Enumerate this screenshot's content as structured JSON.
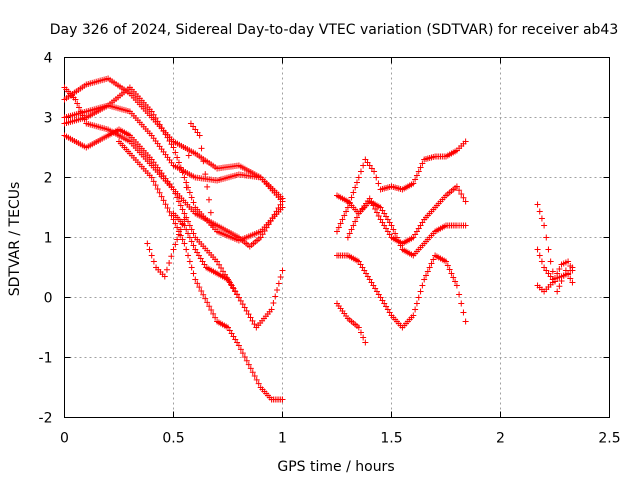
{
  "chart_data": {
    "type": "scatter",
    "title": "Day 326 of 2024, Sidereal Day-to-day VTEC variation (SDTVAR) for receiver ab43",
    "xlabel": "GPS time / hours",
    "ylabel": "SDTVAR / TECUs",
    "xlim": [
      0,
      2.5
    ],
    "ylim": [
      -2,
      4
    ],
    "xticks": [
      0,
      0.5,
      1,
      1.5,
      2,
      2.5
    ],
    "xtick_labels": [
      "0",
      "0.5",
      "1",
      "1.5",
      "2",
      "2.5"
    ],
    "yticks": [
      -2,
      -1,
      0,
      1,
      2,
      3,
      4
    ],
    "ytick_labels": [
      "-2",
      "-1",
      "0",
      "1",
      "2",
      "3",
      "4"
    ],
    "grid": true,
    "marker": "+",
    "color": "#ff0000",
    "series": [
      {
        "name": "s1",
        "x": [
          0,
          0.1,
          0.2,
          0.3,
          0.4,
          0.5,
          0.6,
          0.7,
          0.8,
          0.9,
          1.0
        ],
        "y": [
          3.3,
          3.55,
          3.65,
          3.4,
          3.0,
          2.6,
          2.4,
          2.15,
          2.2,
          2.0,
          1.65
        ]
      },
      {
        "name": "s2",
        "x": [
          0,
          0.1,
          0.2,
          0.3,
          0.4,
          0.5,
          0.6,
          0.7,
          0.8,
          0.9,
          1.0
        ],
        "y": [
          3.0,
          3.1,
          3.2,
          3.1,
          2.7,
          2.2,
          2.0,
          1.95,
          2.05,
          2.0,
          1.6
        ]
      },
      {
        "name": "s3",
        "x": [
          0,
          0.1,
          0.2,
          0.3,
          0.4,
          0.5,
          0.55,
          0.6,
          0.7,
          0.8,
          0.9,
          1.0
        ],
        "y": [
          2.9,
          3.0,
          3.2,
          3.5,
          3.1,
          2.5,
          2.0,
          1.5,
          1.1,
          0.95,
          1.1,
          1.5
        ]
      },
      {
        "name": "s4",
        "x": [
          0,
          0.1,
          0.2,
          0.25,
          0.3,
          0.4,
          0.5,
          0.6,
          0.7,
          0.8,
          0.85,
          0.9,
          1.0
        ],
        "y": [
          2.7,
          2.5,
          2.7,
          2.8,
          2.7,
          2.3,
          1.8,
          1.4,
          1.2,
          1.0,
          0.85,
          1.0,
          1.6
        ]
      },
      {
        "name": "s5",
        "x": [
          0,
          0.05,
          0.1,
          0.2,
          0.3,
          0.4,
          0.5,
          0.55,
          0.6,
          0.7,
          0.8,
          0.88,
          0.95,
          1.0
        ],
        "y": [
          3.5,
          3.3,
          2.9,
          2.8,
          2.6,
          2.2,
          1.8,
          1.4,
          1.0,
          0.6,
          0.0,
          -0.5,
          -0.2,
          0.45
        ]
      },
      {
        "name": "s6",
        "x": [
          0.25,
          0.3,
          0.4,
          0.5,
          0.55,
          0.6,
          0.7,
          0.75,
          0.8,
          0.9,
          0.95,
          1.0
        ],
        "y": [
          2.6,
          2.4,
          2.0,
          1.3,
          0.9,
          0.3,
          -0.4,
          -0.5,
          -0.8,
          -1.5,
          -1.7,
          -1.7
        ]
      },
      {
        "name": "s7",
        "x": [
          0.38,
          0.42,
          0.46,
          0.5,
          0.55,
          0.58,
          0.62,
          0.68
        ],
        "y": [
          0.9,
          0.5,
          0.35,
          0.8,
          1.3,
          2.9,
          2.7,
          1.2
        ]
      },
      {
        "name": "s8",
        "x": [
          0.5,
          0.55,
          0.6,
          0.65,
          0.7,
          0.75,
          0.8
        ],
        "y": [
          1.4,
          1.2,
          0.8,
          0.5,
          0.4,
          0.3,
          0.0
        ]
      },
      {
        "name": "s9",
        "x": [
          1.25,
          1.3,
          1.35,
          1.4,
          1.45,
          1.5,
          1.55,
          1.6,
          1.65,
          1.7,
          1.75,
          1.8,
          1.84
        ],
        "y": [
          1.7,
          1.6,
          1.4,
          1.65,
          1.3,
          1.0,
          0.9,
          1.0,
          1.3,
          1.5,
          1.7,
          1.85,
          1.6
        ]
      },
      {
        "name": "s10",
        "x": [
          1.25,
          1.3,
          1.35,
          1.38,
          1.42,
          1.45,
          1.5,
          1.55,
          1.6,
          1.65,
          1.7,
          1.75,
          1.8,
          1.84
        ],
        "y": [
          1.1,
          1.5,
          2.0,
          2.3,
          2.1,
          1.8,
          1.85,
          1.8,
          1.9,
          2.3,
          2.35,
          2.35,
          2.45,
          2.6
        ]
      },
      {
        "name": "s11",
        "x": [
          1.25,
          1.3,
          1.35,
          1.4,
          1.45,
          1.5,
          1.55,
          1.6,
          1.65,
          1.7,
          1.75,
          1.8,
          1.84
        ],
        "y": [
          0.7,
          0.7,
          0.6,
          0.3,
          0.0,
          -0.3,
          -0.5,
          -0.3,
          0.3,
          0.7,
          0.6,
          0.2,
          -0.4
        ]
      },
      {
        "name": "s12",
        "x": [
          1.25,
          1.3,
          1.35,
          1.38
        ],
        "y": [
          -0.1,
          -0.35,
          -0.5,
          -0.75
        ]
      },
      {
        "name": "s13",
        "x": [
          1.3,
          1.35,
          1.4,
          1.45,
          1.5,
          1.55,
          1.6,
          1.65,
          1.7,
          1.75,
          1.8,
          1.84
        ],
        "y": [
          1.0,
          1.4,
          1.6,
          1.5,
          1.2,
          0.8,
          0.7,
          0.9,
          1.1,
          1.2,
          1.2,
          1.2
        ]
      },
      {
        "name": "s14",
        "x": [
          2.17,
          2.2,
          2.23,
          2.26,
          2.3,
          2.33
        ],
        "y": [
          1.55,
          1.2,
          0.6,
          0.1,
          0.45,
          0.25
        ]
      },
      {
        "name": "s15",
        "x": [
          2.17,
          2.2,
          2.24,
          2.28,
          2.31,
          2.33
        ],
        "y": [
          0.2,
          0.1,
          0.25,
          0.55,
          0.6,
          0.45
        ]
      },
      {
        "name": "s16",
        "x": [
          2.17,
          2.2,
          2.24,
          2.28,
          2.31,
          2.33
        ],
        "y": [
          0.8,
          0.5,
          0.3,
          0.35,
          0.4,
          0.5
        ]
      }
    ]
  }
}
